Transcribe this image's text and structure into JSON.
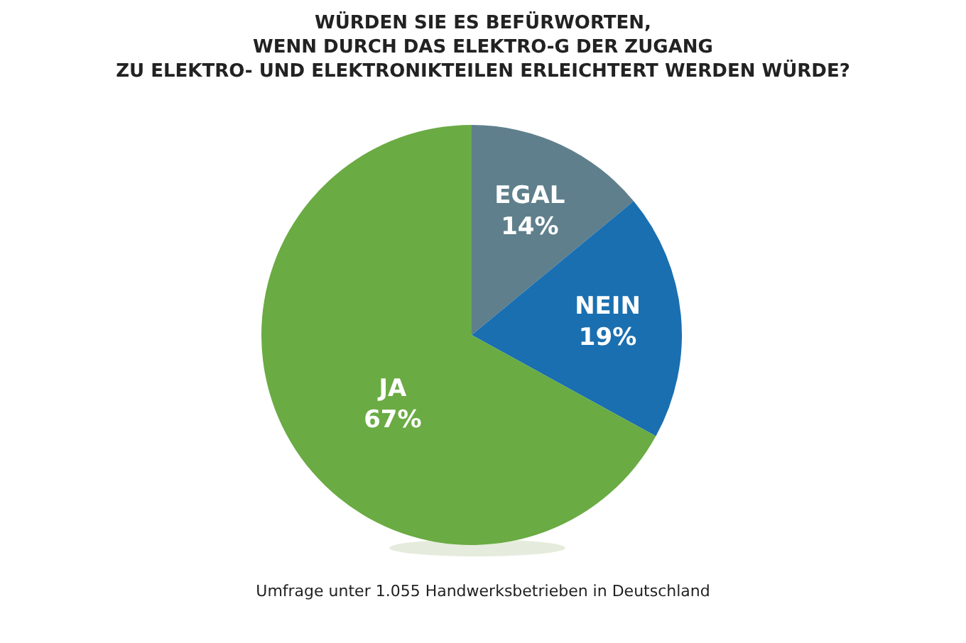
{
  "chart_data": {
    "type": "pie",
    "title": "WÜRDEN SIE ES BEFÜRWORTEN,\nWENN DURCH DAS ELEKTRO-G DER ZUGANG\nZU ELEKTRO- UND ELEKTRONIKTEILEN ERLEICHTERT WERDEN WÜRDE?",
    "categories": [
      "EGAL",
      "NEIN",
      "JA"
    ],
    "values": [
      14,
      19,
      67
    ],
    "colors": [
      "#5f7f8c",
      "#1a6fb0",
      "#6aab43"
    ],
    "value_labels": [
      "14%",
      "19%",
      "67%"
    ],
    "annotations": [
      "Umfrage unter 1.055 Handwerksbetrieben in Deutschland"
    ]
  }
}
